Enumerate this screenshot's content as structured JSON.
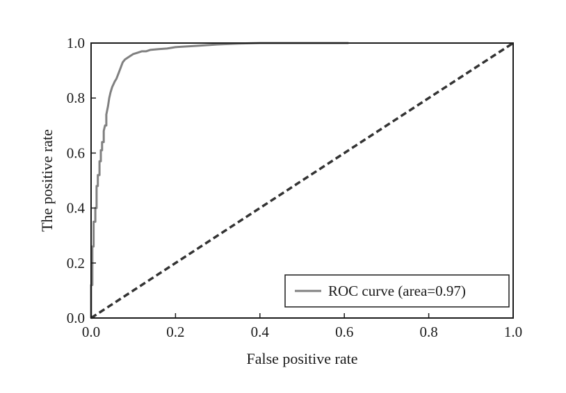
{
  "chart_data": {
    "type": "line",
    "xlabel": "False positive rate",
    "ylabel": "The positive rate",
    "xlim": [
      0,
      1
    ],
    "ylim": [
      0,
      1
    ],
    "xticks": [
      "0.0",
      "0.2",
      "0.4",
      "0.6",
      "0.8",
      "1.0"
    ],
    "yticks": [
      "0.0",
      "0.2",
      "0.4",
      "0.6",
      "0.8",
      "1.0"
    ],
    "grid": false,
    "legend_position": "bottom-right",
    "series": [
      {
        "name": "ROC curve (area=0.97)",
        "color": "#808080",
        "style": "solid",
        "x": [
          0.0,
          0.0,
          0.003,
          0.003,
          0.006,
          0.006,
          0.01,
          0.01,
          0.013,
          0.013,
          0.016,
          0.016,
          0.02,
          0.02,
          0.023,
          0.023,
          0.026,
          0.026,
          0.03,
          0.03,
          0.033,
          0.036,
          0.036,
          0.04,
          0.043,
          0.046,
          0.05,
          0.053,
          0.056,
          0.06,
          0.065,
          0.07,
          0.075,
          0.08,
          0.085,
          0.09,
          0.095,
          0.1,
          0.11,
          0.12,
          0.13,
          0.14,
          0.16,
          0.18,
          0.2,
          0.25,
          0.3,
          0.35,
          0.4,
          0.43,
          0.5,
          0.61
        ],
        "y": [
          0.0,
          0.12,
          0.12,
          0.26,
          0.26,
          0.35,
          0.35,
          0.4,
          0.4,
          0.48,
          0.48,
          0.52,
          0.52,
          0.57,
          0.57,
          0.61,
          0.61,
          0.64,
          0.64,
          0.68,
          0.7,
          0.7,
          0.74,
          0.77,
          0.8,
          0.82,
          0.84,
          0.85,
          0.86,
          0.87,
          0.89,
          0.91,
          0.93,
          0.94,
          0.945,
          0.95,
          0.955,
          0.96,
          0.965,
          0.97,
          0.97,
          0.975,
          0.978,
          0.98,
          0.985,
          0.99,
          0.995,
          0.998,
          1.0,
          1.0,
          1.0,
          1.0
        ]
      },
      {
        "name": "",
        "color": "#333333",
        "style": "dashed",
        "x": [
          0,
          1
        ],
        "y": [
          0,
          1
        ]
      }
    ]
  }
}
